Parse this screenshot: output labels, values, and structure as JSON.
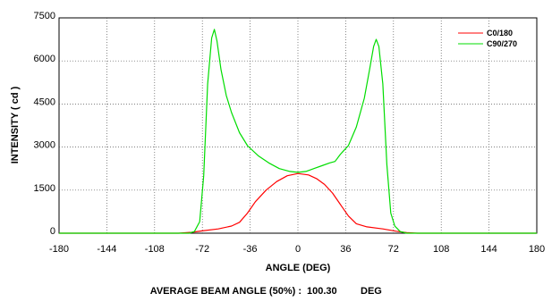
{
  "chart_data": {
    "type": "line",
    "xlabel": "ANGLE (DEG)",
    "ylabel": "INTENSITY ( cd )",
    "xlim": [
      -180,
      180
    ],
    "ylim": [
      0,
      7500
    ],
    "xticks": [
      -180,
      -144,
      -108,
      -72,
      -36,
      0,
      36,
      72,
      108,
      144,
      180
    ],
    "yticks": [
      0,
      1500,
      3000,
      4500,
      6000,
      7500
    ],
    "grid": true,
    "legend_position": "top-right",
    "footer": {
      "label": "AVERAGE BEAM ANGLE (50%) :",
      "value": "100.30",
      "unit": "DEG"
    },
    "series": [
      {
        "name": "C0/180",
        "color": "#ff0000",
        "points": [
          [
            -180,
            0
          ],
          [
            -90,
            0
          ],
          [
            -80,
            30
          ],
          [
            -72,
            80
          ],
          [
            -60,
            150
          ],
          [
            -50,
            250
          ],
          [
            -44,
            380
          ],
          [
            -38,
            700
          ],
          [
            -32,
            1100
          ],
          [
            -24,
            1500
          ],
          [
            -16,
            1800
          ],
          [
            -8,
            2000
          ],
          [
            0,
            2080
          ],
          [
            8,
            2030
          ],
          [
            14,
            1900
          ],
          [
            20,
            1700
          ],
          [
            26,
            1400
          ],
          [
            32,
            1000
          ],
          [
            38,
            600
          ],
          [
            44,
            330
          ],
          [
            52,
            220
          ],
          [
            64,
            150
          ],
          [
            74,
            70
          ],
          [
            82,
            20
          ],
          [
            90,
            0
          ],
          [
            180,
            0
          ]
        ]
      },
      {
        "name": "C90/270",
        "color": "#00dd00",
        "points": [
          [
            -180,
            0
          ],
          [
            -82,
            0
          ],
          [
            -78,
            60
          ],
          [
            -74,
            400
          ],
          [
            -71,
            2000
          ],
          [
            -68,
            5200
          ],
          [
            -65,
            6800
          ],
          [
            -63,
            7100
          ],
          [
            -61,
            6700
          ],
          [
            -58,
            5700
          ],
          [
            -54,
            4800
          ],
          [
            -50,
            4200
          ],
          [
            -44,
            3500
          ],
          [
            -38,
            3050
          ],
          [
            -30,
            2700
          ],
          [
            -22,
            2450
          ],
          [
            -14,
            2250
          ],
          [
            -6,
            2150
          ],
          [
            0,
            2120
          ],
          [
            6,
            2150
          ],
          [
            12,
            2250
          ],
          [
            18,
            2350
          ],
          [
            24,
            2450
          ],
          [
            28,
            2500
          ],
          [
            32,
            2750
          ],
          [
            38,
            3050
          ],
          [
            44,
            3700
          ],
          [
            50,
            4700
          ],
          [
            54,
            5700
          ],
          [
            57,
            6500
          ],
          [
            59,
            6750
          ],
          [
            61,
            6500
          ],
          [
            64,
            5200
          ],
          [
            67,
            2400
          ],
          [
            70,
            700
          ],
          [
            73,
            250
          ],
          [
            77,
            60
          ],
          [
            82,
            0
          ],
          [
            180,
            0
          ]
        ]
      }
    ]
  }
}
